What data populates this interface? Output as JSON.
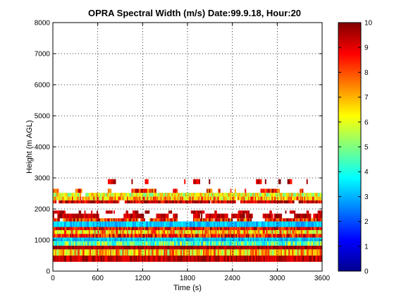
{
  "chart_data": {
    "type": "heatmap",
    "title": "OPRA Spectral Width (m/s)  Date:99.9.18, Hour:20",
    "xlabel": "Time (s)",
    "ylabel": "Height (m AGL)",
    "xlim": [
      0,
      3600
    ],
    "ylim": [
      0,
      8000
    ],
    "xticks": [
      0,
      600,
      1200,
      1800,
      2400,
      3000,
      3600
    ],
    "yticks": [
      0,
      1000,
      2000,
      3000,
      4000,
      5000,
      6000,
      7000,
      8000
    ],
    "grid": true,
    "colorbar": {
      "range": [
        0,
        10
      ],
      "ticks": [
        0,
        1,
        2,
        3,
        4,
        5,
        6,
        7,
        8,
        9,
        10
      ],
      "colormap": "jet"
    },
    "layers": [
      {
        "y0": 300,
        "y1": 500,
        "value": 9.4,
        "coverage": 1.0,
        "jitter": 0.8
      },
      {
        "y0": 500,
        "y1": 700,
        "value": 6.8,
        "coverage": 1.0,
        "jitter": 1.8
      },
      {
        "y0": 700,
        "y1": 820,
        "value": 9.6,
        "coverage": 1.0,
        "jitter": 0.5
      },
      {
        "y0": 820,
        "y1": 960,
        "value": 4.6,
        "coverage": 1.0,
        "jitter": 1.6
      },
      {
        "y0": 960,
        "y1": 1080,
        "value": 3.2,
        "coverage": 1.0,
        "jitter": 0.6
      },
      {
        "y0": 1080,
        "y1": 1200,
        "value": 8.6,
        "coverage": 1.0,
        "jitter": 1.4
      },
      {
        "y0": 1200,
        "y1": 1320,
        "value": 6.8,
        "coverage": 1.0,
        "jitter": 1.8
      },
      {
        "y0": 1320,
        "y1": 1420,
        "value": 8.8,
        "coverage": 0.98,
        "jitter": 1.2
      },
      {
        "y0": 1420,
        "y1": 1600,
        "value": 3.2,
        "coverage": 1.0,
        "jitter": 0.6
      },
      {
        "y0": 1600,
        "y1": 1700,
        "value": 8.5,
        "coverage": 0.75,
        "jitter": 1.6
      },
      {
        "y0": 1700,
        "y1": 1850,
        "value": 9.4,
        "coverage": 0.45,
        "jitter": 0.6
      },
      {
        "y0": 1850,
        "y1": 1950,
        "value": 9.4,
        "coverage": 0.35,
        "jitter": 0.6
      },
      {
        "y0": 2180,
        "y1": 2280,
        "value": 9.2,
        "coverage": 0.95,
        "jitter": 1.2
      },
      {
        "y0": 2280,
        "y1": 2400,
        "value": 7.0,
        "coverage": 0.95,
        "jitter": 1.6
      },
      {
        "y0": 2400,
        "y1": 2520,
        "value": 6.0,
        "coverage": 0.96,
        "jitter": 1.4
      },
      {
        "y0": 2520,
        "y1": 2650,
        "value": 8.4,
        "coverage": 0.22,
        "jitter": 1.5
      },
      {
        "y0": 2800,
        "y1": 2960,
        "value": 9.3,
        "coverage": 0.22,
        "jitter": 0.8
      }
    ]
  }
}
